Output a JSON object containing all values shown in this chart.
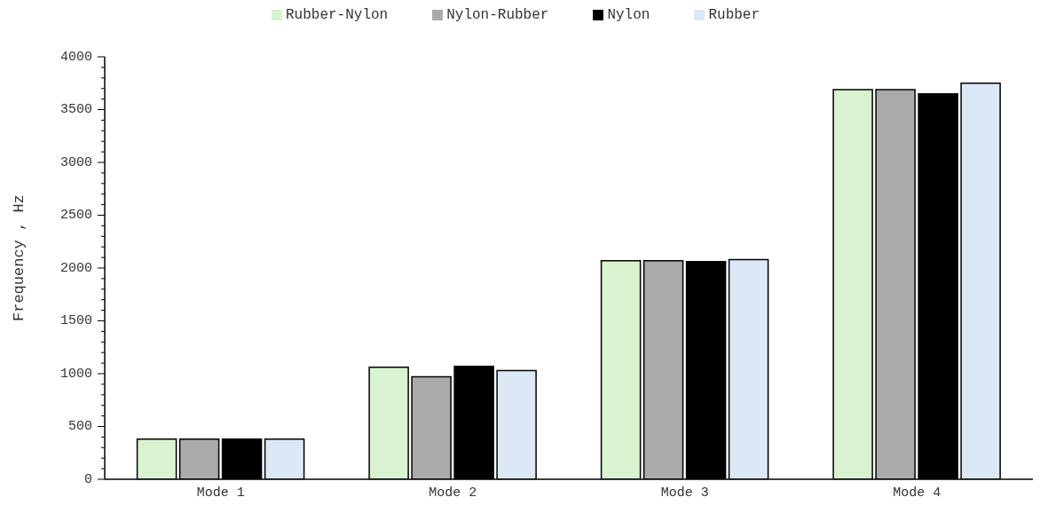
{
  "chart_data": {
    "type": "bar",
    "ylabel": "Frequency , Hz",
    "categories": [
      "Mode 1",
      "Mode 2",
      "Mode 3",
      "Mode 4"
    ],
    "series": [
      {
        "name": "Rubber-Nylon",
        "color": "#d9f2d0",
        "values": [
          380,
          1060,
          2070,
          3690
        ]
      },
      {
        "name": "Nylon-Rubber",
        "color": "#aaaaaa",
        "values": [
          380,
          970,
          2070,
          3690
        ]
      },
      {
        "name": "Nylon",
        "color": "#000000",
        "values": [
          380,
          1070,
          2060,
          3650
        ]
      },
      {
        "name": "Rubber",
        "color": "#dce8f5",
        "values": [
          380,
          1030,
          2080,
          3750
        ]
      }
    ],
    "ylim": [
      0,
      4000
    ],
    "yticks": [
      0,
      {
        "value": 100,
        "label": null
      },
      {
        "value": 200,
        "label": null
      },
      {
        "value": 300,
        "label": null
      },
      {
        "value": 400,
        "label": null
      },
      500,
      {
        "value": 600,
        "label": null
      },
      {
        "value": 700,
        "label": null
      },
      {
        "value": 800,
        "label": null
      },
      {
        "value": 900,
        "label": null
      },
      1000,
      {
        "value": 1100,
        "label": null
      },
      {
        "value": 1200,
        "label": null
      },
      {
        "value": 1300,
        "label": null
      },
      {
        "value": 1400,
        "label": null
      },
      1500,
      {
        "value": 1600,
        "label": null
      },
      {
        "value": 1700,
        "label": null
      },
      {
        "value": 1800,
        "label": null
      },
      {
        "value": 1900,
        "label": null
      },
      2000,
      {
        "value": 2100,
        "label": null
      },
      {
        "value": 2200,
        "label": null
      },
      {
        "value": 2300,
        "label": null
      },
      {
        "value": 2400,
        "label": null
      },
      2500,
      {
        "value": 2600,
        "label": null
      },
      {
        "value": 2700,
        "label": null
      },
      {
        "value": 2800,
        "label": null
      },
      {
        "value": 2900,
        "label": null
      },
      3000,
      {
        "value": 3100,
        "label": null
      },
      {
        "value": 3200,
        "label": null
      },
      {
        "value": 3300,
        "label": null
      },
      {
        "value": 3400,
        "label": null
      },
      3500,
      {
        "value": 3600,
        "label": null
      },
      {
        "value": 3700,
        "label": null
      },
      {
        "value": 3800,
        "label": null
      },
      {
        "value": 3900,
        "label": null
      },
      4000
    ],
    "grid": false,
    "legend": "top"
  }
}
